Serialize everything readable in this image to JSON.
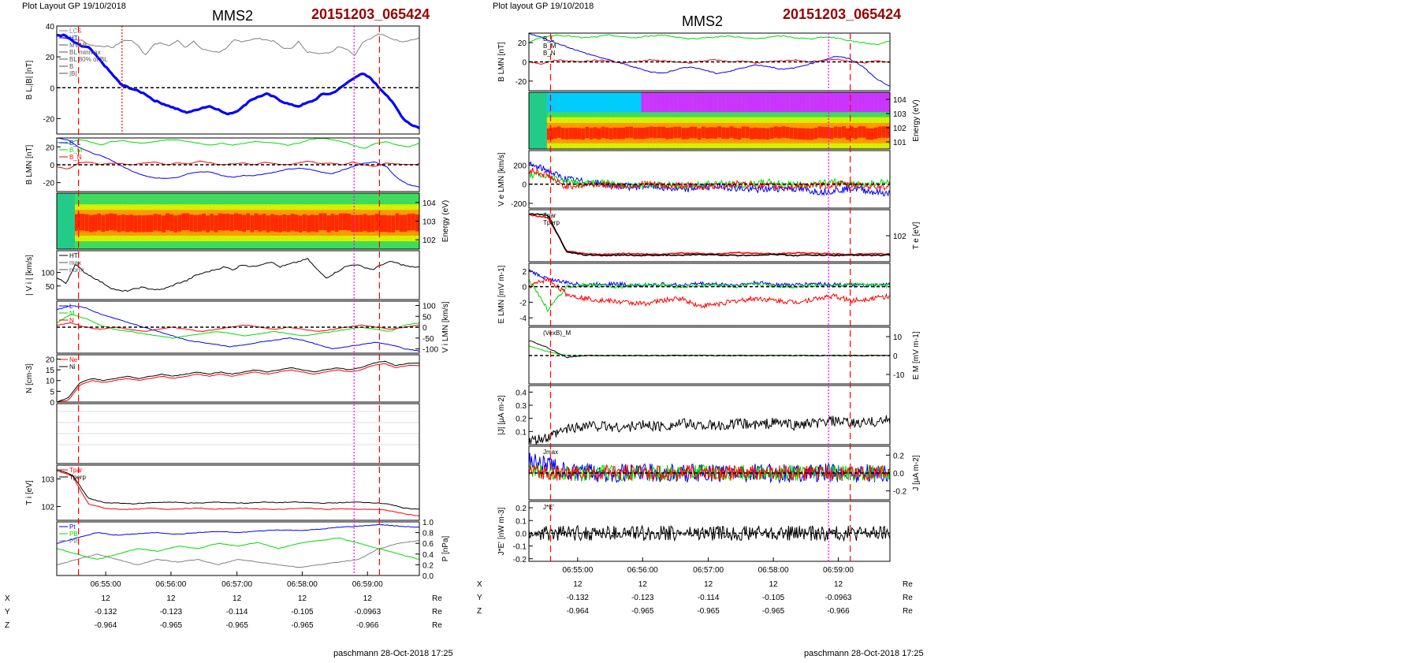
{
  "left": {
    "header": "Plot Layout GP 19/10/2018",
    "title": "MMS2",
    "event_id": "20151203_065424",
    "footer": "paschmann 28-Oct-2018 17:25"
  },
  "right": {
    "header": "Plot layout GP 19/10/2018",
    "title": "MMS2",
    "event_id": "20151203_065424",
    "footer": "paschmann 28-Oct-2018 17:25"
  },
  "colors": {
    "title_red": "#990000",
    "blue": "#0000ff",
    "red": "#ff0000",
    "green": "#00dd00",
    "black": "#000000",
    "gray": "#808080",
    "magenta": "#ff00ff"
  },
  "chart_data": [
    {
      "type": "line",
      "name": "left-stack",
      "time_ticks": [
        "06:55:00",
        "06:56:00",
        "06:57:00",
        "06:58:00",
        "06:59:00"
      ],
      "time_range": [
        "06:54:24",
        "06:59:54"
      ],
      "ephemeris": {
        "rows": [
          {
            "label": "X",
            "values": [
              "12",
              "12",
              "12",
              "12",
              "12"
            ],
            "unit": "Re"
          },
          {
            "label": "Y",
            "values": [
              "-0.132",
              "-0.123",
              "-0.114",
              "-0.105",
              "-0.0963"
            ],
            "unit": "Re"
          },
          {
            "label": "Z",
            "values": [
              "-0.964",
              "-0.965",
              "-0.965",
              "-0.965",
              "-0.966"
            ],
            "unit": "Re"
          }
        ]
      },
      "panels": [
        {
          "id": "bl",
          "ylabel": "B_L,|B| [nT]",
          "ylim": [
            -30,
            40
          ],
          "ticks": [
            "40",
            "20",
            "0",
            "-20"
          ],
          "legend": [
            "LCS",
            "HT",
            "MVAB",
            "BL minmax",
            "BL 80% of BL",
            "B",
            "|B|"
          ],
          "series": [
            {
              "name": "|B|",
              "color": "gray",
              "y": [
                34,
                32,
                31,
                31,
                28,
                27,
                27,
                26,
                30,
                31,
                28,
                21,
                28,
                29,
                27,
                31,
                26,
                30,
                25,
                24,
                23,
                25,
                31,
                30,
                31,
                32,
                31,
                30,
                26,
                25,
                30,
                23,
                23,
                22,
                23,
                27,
                25,
                21,
                30,
                32,
                35,
                33,
                31,
                30,
                31,
                32
              ]
            },
            {
              "name": "BL",
              "color": "blue",
              "y": [
                34,
                34,
                30,
                27,
                26,
                20,
                14,
                8,
                2,
                0,
                -2,
                -4,
                -8,
                -10,
                -12,
                -14,
                -16,
                -15,
                -13,
                -12,
                -14,
                -17,
                -16,
                -13,
                -8,
                -6,
                -4,
                -6,
                -9,
                -11,
                -12,
                -10,
                -8,
                -4,
                -4,
                -1,
                3,
                7,
                9,
                6,
                0,
                -5,
                -12,
                -20,
                -24,
                -26
              ]
            }
          ]
        },
        {
          "id": "blmn",
          "ylabel": "B_LMN [nT]",
          "ylim": [
            -30,
            30
          ],
          "ticks": [
            "20",
            "0",
            "-20"
          ],
          "legend": [
            "B_L",
            "B_M",
            "B_N"
          ],
          "series": [
            {
              "name": "BL",
              "color": "blue",
              "y": [
                30,
                28,
                20,
                14,
                10,
                5,
                -2,
                -8,
                -12,
                -15,
                -15,
                -14,
                -10,
                -8,
                -8,
                -12,
                -14,
                -12,
                -12,
                -10,
                -8,
                -5,
                -4,
                -5,
                -8,
                -10,
                -6,
                -2,
                2,
                3,
                -2,
                -15,
                -22,
                -25
              ]
            },
            {
              "name": "BM",
              "color": "green",
              "y": [
                25,
                24,
                28,
                26,
                22,
                26,
                27,
                25,
                24,
                26,
                28,
                28,
                26,
                24,
                22,
                24,
                22,
                24,
                26,
                25,
                24,
                22,
                24,
                28,
                30,
                28,
                26,
                22,
                18,
                24,
                26,
                22,
                20,
                24
              ]
            },
            {
              "name": "BN",
              "color": "red",
              "y": [
                -2,
                -5,
                2,
                3,
                0,
                2,
                1,
                0,
                2,
                3,
                0,
                2,
                1,
                4,
                2,
                0,
                1,
                2,
                0,
                3,
                1,
                0,
                2,
                4,
                1,
                2,
                0,
                3,
                0,
                -2,
                2,
                1,
                0,
                1
              ]
            }
          ]
        },
        {
          "id": "spec_i",
          "ylabel": "Energy (eV)",
          "ticks": [
            "10^4",
            "10^3",
            "10^2"
          ],
          "kind": "spectrogram"
        },
        {
          "id": "vi",
          "ylabel": "| V_i | [km/s]",
          "ylim": [
            0,
            180
          ],
          "ticks": [
            "100",
            "50"
          ],
          "legend": [
            "HT",
            "max",
            "norm"
          ],
          "series": [
            {
              "name": "|V|",
              "color": "black",
              "y": [
                80,
                60,
                130,
                100,
                80,
                60,
                40,
                30,
                35,
                45,
                40,
                35,
                45,
                60,
                70,
                90,
                100,
                110,
                120,
                110,
                130,
                120,
                130,
                140,
                120,
                130,
                140,
                150,
                110,
                80,
                100,
                120,
                130,
                120,
                110,
                130,
                140,
                130,
                120,
                120
              ]
            }
          ]
        },
        {
          "id": "vilmn",
          "ylabel": "V_i LMN [km/s]",
          "ylim": [
            -120,
            120
          ],
          "ticks": [
            "100",
            "50",
            "0",
            "-50",
            "-100"
          ],
          "legend": [
            "L",
            "M",
            "N"
          ],
          "series": [
            {
              "name": "VL",
              "color": "blue",
              "y": [
                80,
                100,
                90,
                60,
                40,
                20,
                0,
                -20,
                -40,
                -60,
                -70,
                -80,
                -90,
                -80,
                -70,
                -60,
                -50,
                -60,
                -80,
                -100,
                -90,
                -80,
                -70,
                -80,
                -100,
                -110
              ]
            },
            {
              "name": "VM",
              "color": "green",
              "y": [
                20,
                60,
                40,
                10,
                -10,
                -20,
                -30,
                -40,
                -50,
                -40,
                -30,
                -20,
                -30,
                -40,
                -30,
                -20,
                -30,
                -40,
                -30,
                -20,
                -10,
                0,
                -10,
                -20,
                10,
                20
              ]
            },
            {
              "name": "VN",
              "color": "red",
              "y": [
                10,
                20,
                0,
                -10,
                0,
                -10,
                -20,
                -10,
                0,
                -10,
                -20,
                -10,
                0,
                10,
                0,
                -10,
                0,
                -10,
                -20,
                -10,
                0,
                10,
                0,
                -10,
                0,
                10
              ]
            }
          ]
        },
        {
          "id": "n",
          "ylabel": "N [cm^-3]",
          "ylim": [
            0,
            22
          ],
          "ticks": [
            "20",
            "15",
            "10",
            "5",
            "0"
          ],
          "legend": [
            "Ne",
            "Ni"
          ],
          "series": [
            {
              "name": "Ne",
              "color": "red",
              "y": [
                0,
                1,
                8,
                10,
                9,
                10,
                11,
                10,
                11,
                12,
                11,
                12,
                13,
                12,
                13,
                12,
                13,
                14,
                13,
                14,
                15,
                14,
                13,
                14,
                15,
                14,
                15,
                17,
                18,
                16,
                17,
                17
              ]
            },
            {
              "name": "Ni",
              "color": "black",
              "y": [
                0,
                2,
                9,
                11,
                10,
                11,
                12,
                11,
                12,
                13,
                12,
                13,
                14,
                13,
                14,
                13,
                14,
                15,
                14,
                15,
                16,
                15,
                14,
                15,
                16,
                15,
                16,
                18,
                19,
                17,
                18,
                18
              ]
            }
          ]
        },
        {
          "id": "mixed",
          "ylabel": "",
          "ticks": [],
          "kind": "blank"
        },
        {
          "id": "ti",
          "ylabel": "T_i [eV]",
          "ticks": [
            "10^3",
            "10^2"
          ],
          "legend": [
            "Tpar",
            "Tperp"
          ],
          "series": [
            {
              "name": "Tpar",
              "color": "red",
              "y": [
                0.9,
                0.8,
                0.3,
                0.22,
                0.2,
                0.2,
                0.22,
                0.2,
                0.21,
                0.22,
                0.2,
                0.21,
                0.22,
                0.2,
                0.2,
                0.21,
                0.22,
                0.2,
                0.21,
                0.2,
                0.2,
                0.18,
                0.12,
                0.08
              ]
            },
            {
              "name": "Tperp",
              "color": "black",
              "y": [
                0.92,
                0.82,
                0.4,
                0.32,
                0.31,
                0.3,
                0.32,
                0.33,
                0.32,
                0.31,
                0.33,
                0.32,
                0.31,
                0.33,
                0.32,
                0.33,
                0.32,
                0.31,
                0.32,
                0.33,
                0.32,
                0.3,
                0.22,
                0.2
              ]
            }
          ]
        },
        {
          "id": "p",
          "ylabel": "P [nPa]",
          "ylim": [
            0,
            1
          ],
          "ticks": [
            "1.0",
            "0.8",
            "0.6",
            "0.4",
            "0.2",
            "0.0"
          ],
          "legend": [
            "Pt",
            "PB",
            "Pth"
          ],
          "series": [
            {
              "name": "Pt",
              "color": "blue",
              "y": [
                0.6,
                0.7,
                0.8,
                0.75,
                0.78,
                0.8,
                0.77,
                0.8,
                0.82,
                0.8,
                0.83,
                0.85,
                0.84,
                0.86,
                0.9,
                0.92,
                0.95,
                0.92,
                0.9
              ]
            },
            {
              "name": "PB",
              "color": "green",
              "y": [
                0.5,
                0.4,
                0.3,
                0.4,
                0.5,
                0.45,
                0.55,
                0.5,
                0.6,
                0.55,
                0.62,
                0.5,
                0.6,
                0.65,
                0.7,
                0.6,
                0.5,
                0.4,
                0.3
              ]
            },
            {
              "name": "Pth",
              "color": "gray",
              "y": [
                0.2,
                0.3,
                0.4,
                0.3,
                0.2,
                0.3,
                0.25,
                0.3,
                0.2,
                0.3,
                0.25,
                0.2,
                0.15,
                0.2,
                0.25,
                0.3,
                0.5,
                0.6,
                0.65
              ]
            }
          ]
        }
      ]
    },
    {
      "type": "line",
      "name": "right-stack",
      "time_ticks": [
        "06:55:00",
        "06:56:00",
        "06:57:00",
        "06:58:00",
        "06:59:00"
      ],
      "time_range": [
        "06:54:24",
        "06:59:54"
      ],
      "ephemeris": {
        "rows": [
          {
            "label": "X",
            "values": [
              "12",
              "12",
              "12",
              "12",
              "12"
            ],
            "unit": "Re"
          },
          {
            "label": "Y",
            "values": [
              "-0.132",
              "-0.123",
              "-0.114",
              "-0.105",
              "-0.0963"
            ],
            "unit": "Re"
          },
          {
            "label": "Z",
            "values": [
              "-0.964",
              "-0.965",
              "-0.965",
              "-0.965",
              "-0.966"
            ],
            "unit": "Re"
          }
        ]
      },
      "panels": [
        {
          "id": "blmn",
          "ylabel": "B_LMN [nT]",
          "ylim": [
            -30,
            30
          ],
          "ticks": [
            "20",
            "0",
            "-20"
          ],
          "legend": [
            "B_L",
            "B_M",
            "B_N"
          ]
        },
        {
          "id": "spec_e",
          "ylabel": "Energy (eV)",
          "ticks": [
            "10^4",
            "10^3",
            "10^2",
            "10^1"
          ],
          "kind": "spectrogram"
        },
        {
          "id": "ve",
          "ylabel": "V_e LMN [km/s]",
          "ylim": [
            -250,
            350
          ],
          "ticks": [
            "200",
            "0",
            "-200"
          ]
        },
        {
          "id": "te",
          "ylabel": "T_e [eV]",
          "ticks": [
            "10^2"
          ],
          "legend": [
            "Tpar",
            "Tperp"
          ]
        },
        {
          "id": "e",
          "ylabel": "E_LMN [mV m^-1]",
          "ylim": [
            -5,
            3
          ],
          "ticks": [
            "2",
            "0",
            "-2",
            "-4"
          ]
        },
        {
          "id": "em",
          "ylabel": "E_M [mV m^-1]",
          "ylim": [
            -15,
            15
          ],
          "ticks": [
            "10",
            "0",
            "-10"
          ],
          "legend": [
            "(VexB)_M"
          ]
        },
        {
          "id": "j",
          "ylabel": "|J| [μA m^-2]",
          "ylim": [
            0,
            0.45
          ],
          "ticks": [
            "0.4",
            "0.3",
            "0.2",
            "0.1"
          ]
        },
        {
          "id": "jlmn",
          "ylabel": "J [μA m^-2]",
          "ylim": [
            -0.3,
            0.3
          ],
          "ticks": [
            "0.2",
            "0.0",
            "-0.2"
          ],
          "legend": [
            "Jmax"
          ]
        },
        {
          "id": "je",
          "ylabel": "J*E' [nW m^-3]",
          "ylim": [
            -0.22,
            0.25
          ],
          "ticks": [
            "0.2",
            "0.1",
            "0.0",
            "-0.1",
            "-0.2"
          ],
          "legend": [
            "J*E'"
          ]
        }
      ]
    }
  ]
}
